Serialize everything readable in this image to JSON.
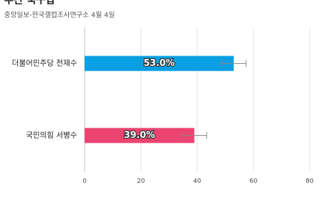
{
  "chart_data": {
    "type": "bar",
    "orientation": "horizontal",
    "title": "부산 북구갑",
    "subtitle": "중앙일보-한국갤럽조사연구소 4월 4일",
    "categories": [
      "더불어민주당 전재수",
      "국민의힘 서병수"
    ],
    "values": [
      53.0,
      39.0
    ],
    "value_labels": [
      "53.0%",
      "39.0%"
    ],
    "errors": [
      4.4,
      4.4
    ],
    "colors": [
      "#0a9fe3",
      "#ec4470"
    ],
    "xlim": [
      0,
      80
    ],
    "xticks": [
      0,
      20,
      40,
      60,
      80
    ],
    "grid": true
  }
}
